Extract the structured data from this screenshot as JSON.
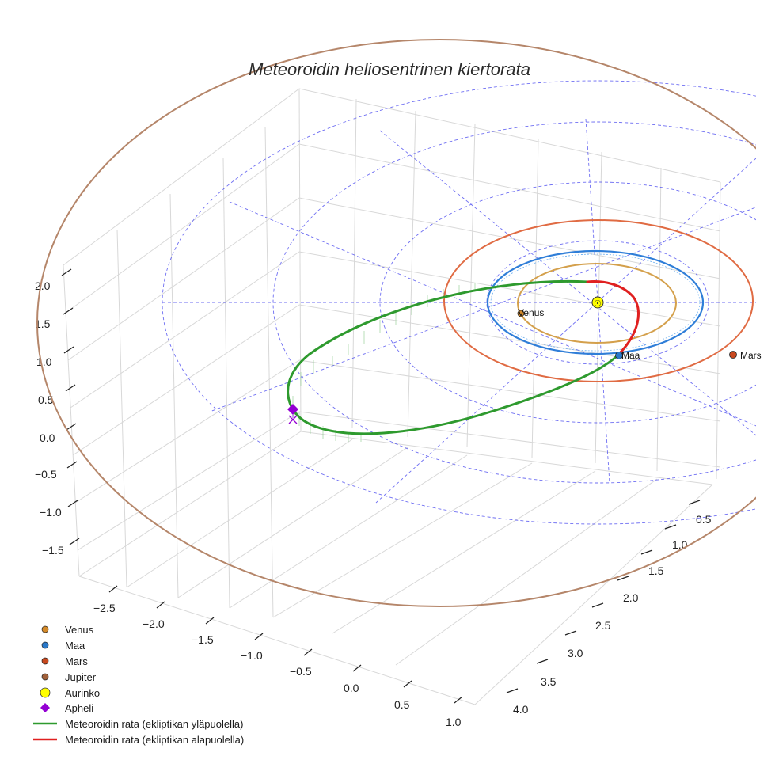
{
  "chart_data": {
    "type": "line",
    "projection": "3d",
    "title": "Meteoroidin heliosentrinen kiertorata",
    "x_ticks": [
      "−2.5",
      "−2.0",
      "−1.5",
      "−1.0",
      "−0.5",
      "0.0",
      "0.5",
      "1.0"
    ],
    "y_ticks": [
      "0.5",
      "1.0",
      "1.5",
      "2.0",
      "2.5",
      "3.0",
      "3.5",
      "4.0"
    ],
    "z_ticks": [
      "2.0",
      "1.5",
      "1.0",
      "0.5",
      "0.0",
      "−0.5",
      "−1.0",
      "−1.5"
    ],
    "grid": true,
    "planet_orbits": [
      {
        "name": "Venus",
        "radius_au": 0.72,
        "color": "#d4a04c"
      },
      {
        "name": "Maa",
        "radius_au": 1.0,
        "color": "#2f7ed8"
      },
      {
        "name": "Mars",
        "radius_au": 1.52,
        "color": "#e06b43"
      },
      {
        "name": "Jupiter",
        "radius_au": 5.2,
        "color": "#b5866a"
      }
    ],
    "planet_labels": [
      "Venus",
      "Maa",
      "Mars"
    ],
    "sun_symbol": "☉",
    "series": [
      {
        "name": "Meteoroidin rata (ekliptikan yläpuolella)",
        "color": "#2e9a2e"
      },
      {
        "name": "Meteoroidin rata (ekliptikan alapuolella)",
        "color": "#e02020"
      }
    ],
    "legend": [
      {
        "label": "Venus",
        "marker": "circle",
        "color": "#d48a2a"
      },
      {
        "label": "Maa",
        "marker": "circle",
        "color": "#2a78c8"
      },
      {
        "label": "Mars",
        "marker": "circle",
        "color": "#c8481e"
      },
      {
        "label": "Jupiter",
        "marker": "circle",
        "color": "#a0603a"
      },
      {
        "label": "Aurinko",
        "marker": "big-circle",
        "color": "#ffff00"
      },
      {
        "label": "Apheli",
        "marker": "diamond",
        "color": "#9400d3"
      },
      {
        "label": "Meteoroidin rata (ekliptikan yläpuolella)",
        "marker": "line",
        "color": "#2e9a2e"
      },
      {
        "label": "Meteoroidin rata (ekliptikan alapuolella)",
        "marker": "line",
        "color": "#e02020"
      }
    ],
    "legend_position": "bottom-left"
  }
}
